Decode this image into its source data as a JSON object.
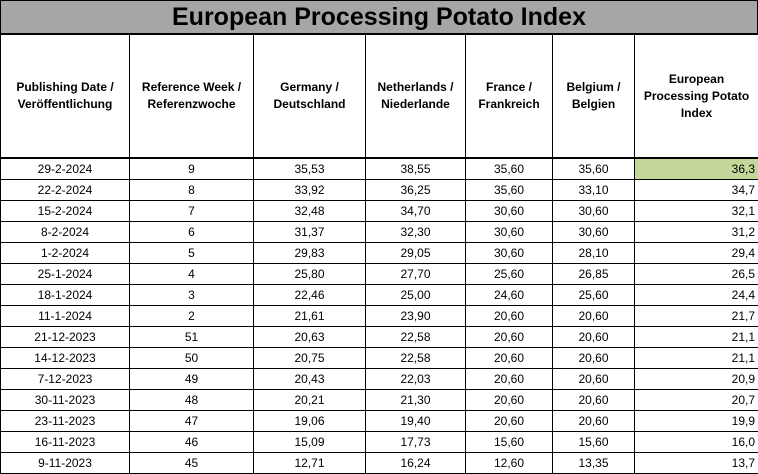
{
  "title": "European Processing Potato Index",
  "headers": [
    [
      "Publishing Date /",
      "Veröffentlichung"
    ],
    [
      "Reference Week /",
      "Referenzwoche"
    ],
    [
      "Germany /",
      "Deutschland"
    ],
    [
      "Netherlands /",
      "Niederlande"
    ],
    [
      "France /",
      "Frankreich"
    ],
    [
      "Belgium /",
      "Belgien"
    ],
    [
      "European",
      "Processing Potato",
      "Index"
    ]
  ],
  "highlight_color": "#c4d79b",
  "rows": [
    [
      "29-2-2024",
      "9",
      "35,53",
      "38,55",
      "35,60",
      "35,60",
      "36,3"
    ],
    [
      "22-2-2024",
      "8",
      "33,92",
      "36,25",
      "35,60",
      "33,10",
      "34,7"
    ],
    [
      "15-2-2024",
      "7",
      "32,48",
      "34,70",
      "30,60",
      "30,60",
      "32,1"
    ],
    [
      "8-2-2024",
      "6",
      "31,37",
      "32,30",
      "30,60",
      "30,60",
      "31,2"
    ],
    [
      "1-2-2024",
      "5",
      "29,83",
      "29,05",
      "30,60",
      "28,10",
      "29,4"
    ],
    [
      "25-1-2024",
      "4",
      "25,80",
      "27,70",
      "25,60",
      "26,85",
      "26,5"
    ],
    [
      "18-1-2024",
      "3",
      "22,46",
      "25,00",
      "24,60",
      "25,60",
      "24,4"
    ],
    [
      "11-1-2024",
      "2",
      "21,61",
      "23,90",
      "20,60",
      "20,60",
      "21,7"
    ],
    [
      "21-12-2023",
      "51",
      "20,63",
      "22,58",
      "20,60",
      "20,60",
      "21,1"
    ],
    [
      "14-12-2023",
      "50",
      "20,75",
      "22,58",
      "20,60",
      "20,60",
      "21,1"
    ],
    [
      "7-12-2023",
      "49",
      "20,43",
      "22,03",
      "20,60",
      "20,60",
      "20,9"
    ],
    [
      "30-11-2023",
      "48",
      "20,21",
      "21,30",
      "20,60",
      "20,60",
      "20,7"
    ],
    [
      "23-11-2023",
      "47",
      "19,06",
      "19,40",
      "20,60",
      "20,60",
      "19,9"
    ],
    [
      "16-11-2023",
      "46",
      "15,09",
      "17,73",
      "15,60",
      "15,60",
      "16,0"
    ],
    [
      "9-11-2023",
      "45",
      "12,71",
      "16,24",
      "12,60",
      "13,35",
      "13,7"
    ]
  ]
}
